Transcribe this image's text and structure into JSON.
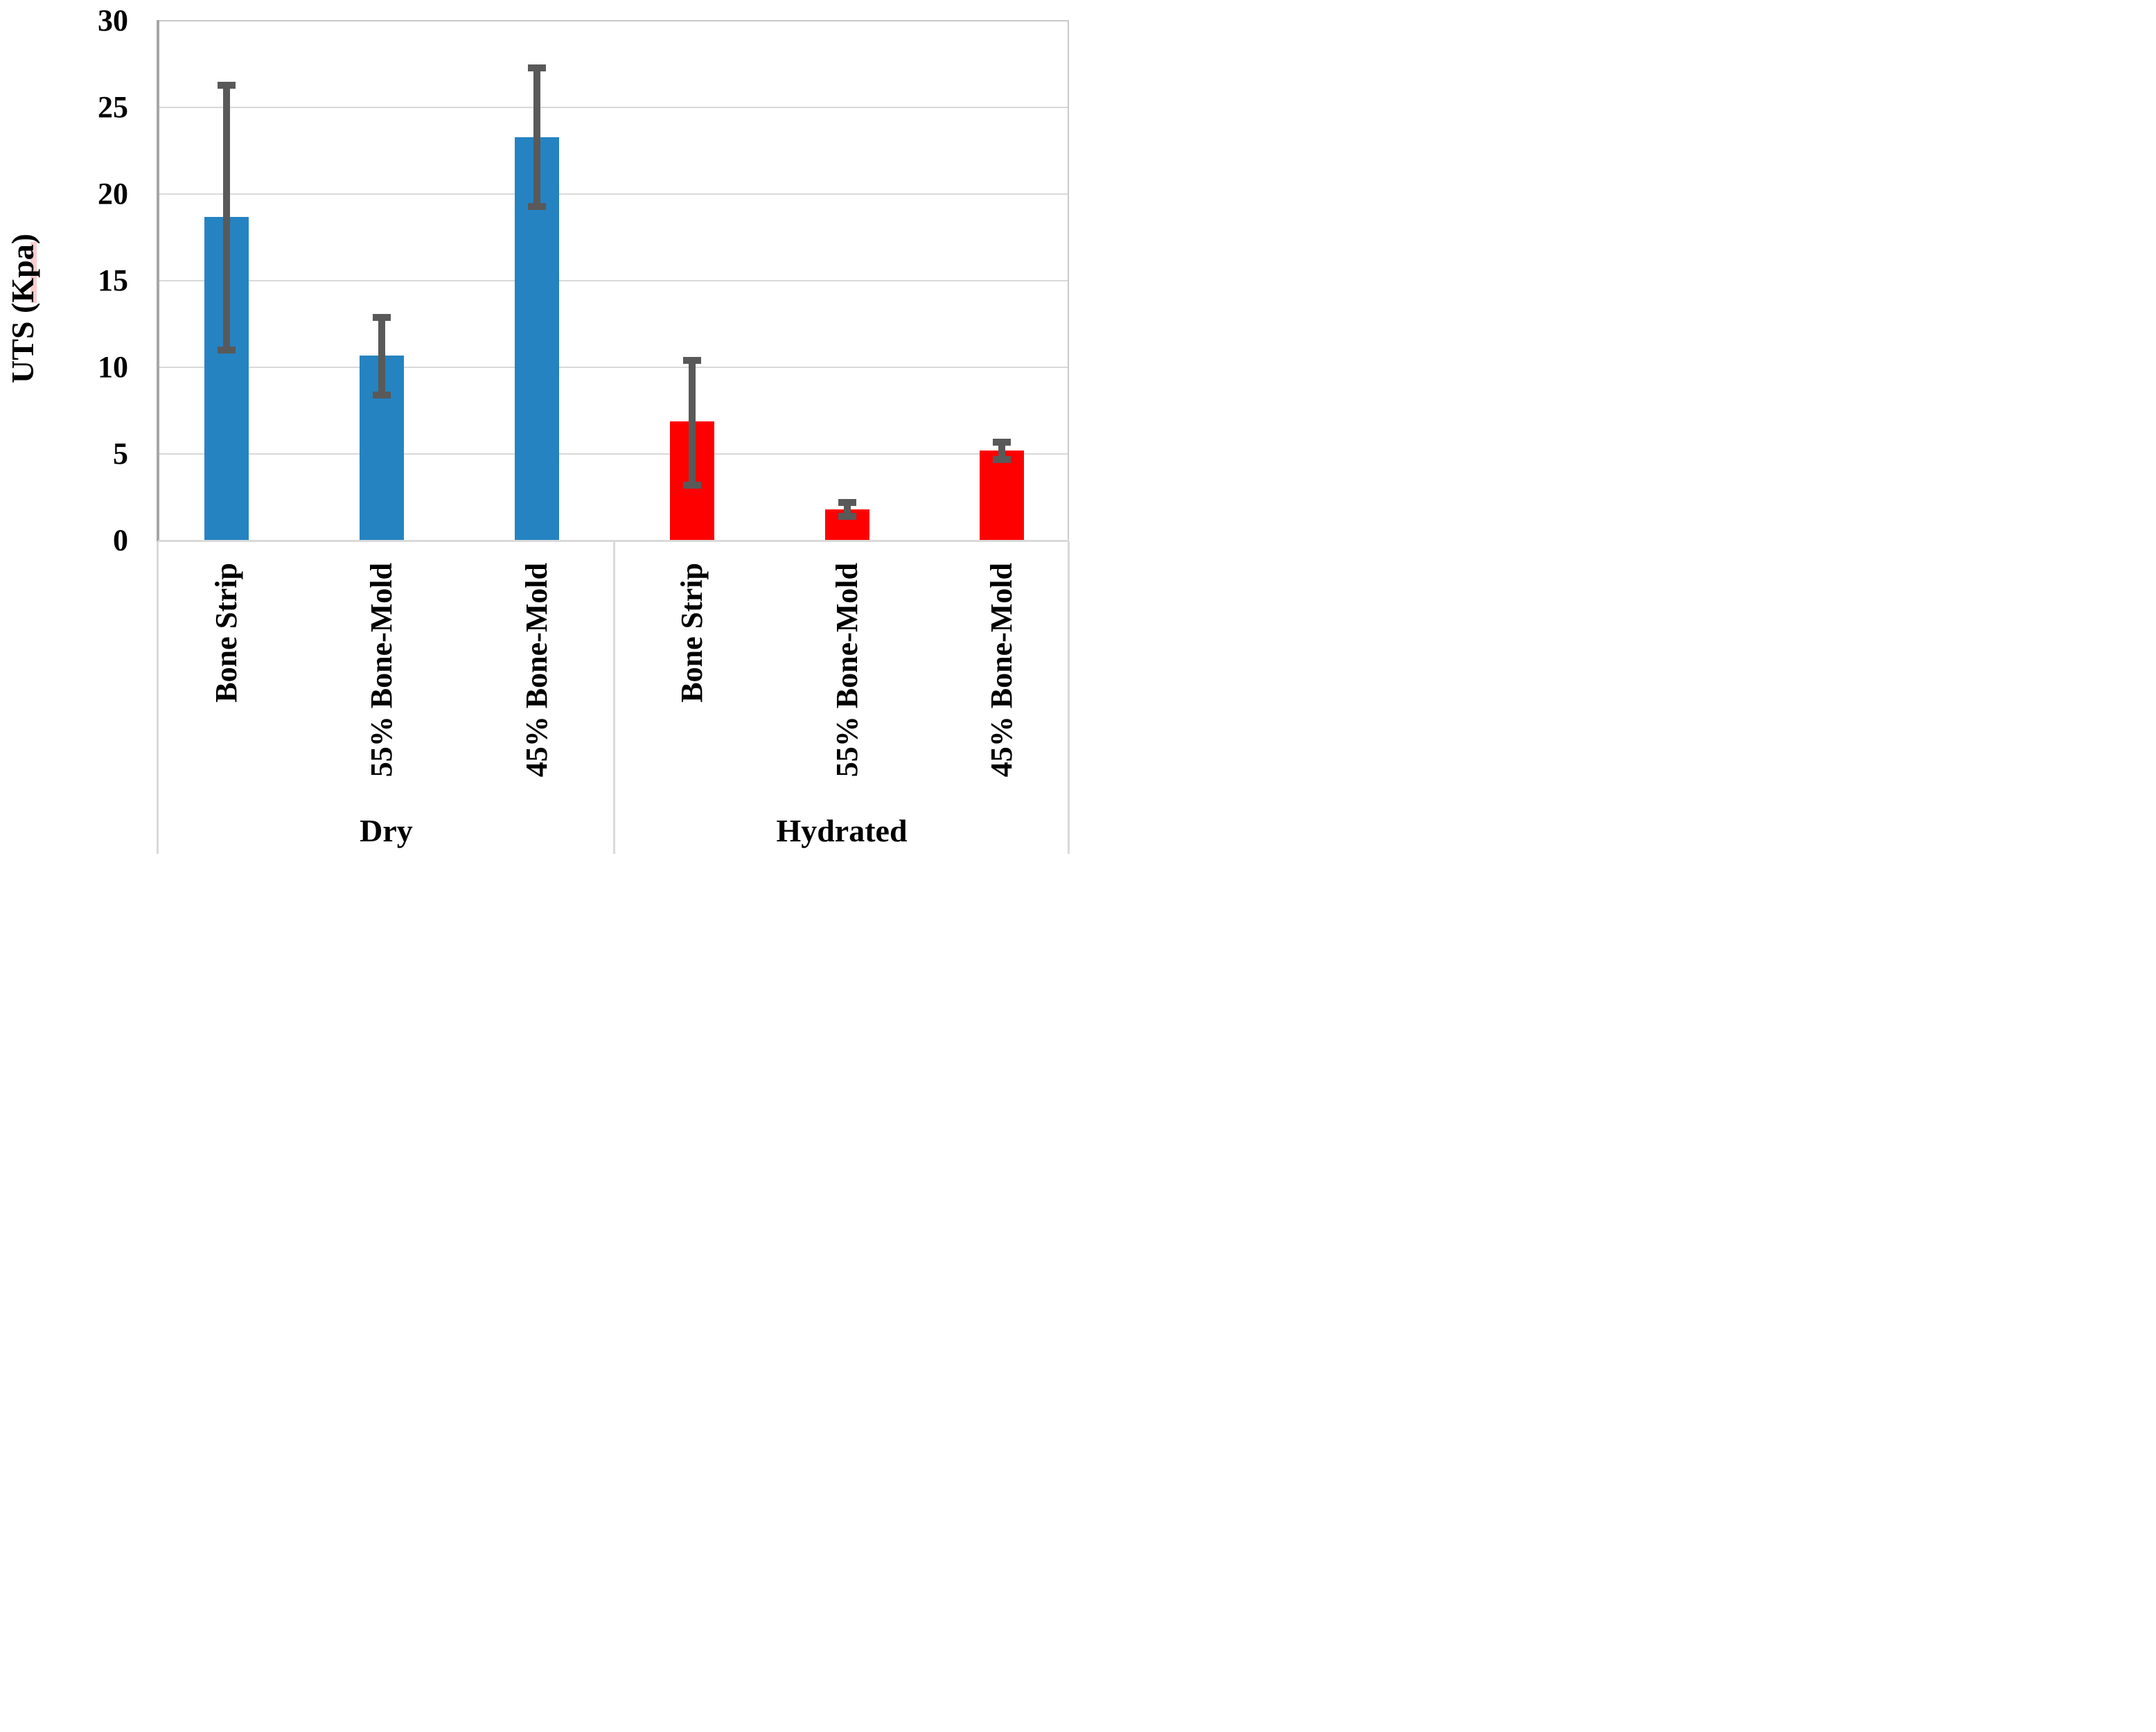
{
  "chart_data": {
    "type": "bar",
    "title": "",
    "ylabel": "UTS (Kpa)",
    "xlabel": "",
    "ylim": [
      0,
      30
    ],
    "yticks": [
      0,
      5,
      10,
      15,
      20,
      25,
      30
    ],
    "grid": true,
    "legend": "none",
    "error_bars": true,
    "colors": {
      "dry_bar": "#2583c2",
      "hydrated_bar": "#ff0000",
      "error_bar": "#595959",
      "gridline": "#d9d9d9",
      "axis_line": "#a6a6a6",
      "text": "#000000"
    },
    "groups": [
      {
        "label": "Dry",
        "color": "#2583c2",
        "bars": [
          {
            "category": "Bone Strip",
            "value": 18.7,
            "err_low": 11.0,
            "err_high": 26.3
          },
          {
            "category": "55% Bone-Mold",
            "value": 10.7,
            "err_low": 8.4,
            "err_high": 12.9
          },
          {
            "category": "45% Bone-Mold",
            "value": 23.3,
            "err_low": 19.3,
            "err_high": 27.3
          }
        ]
      },
      {
        "label": "Hydrated",
        "color": "#ff0000",
        "bars": [
          {
            "category": "Bone Strip",
            "value": 6.9,
            "err_low": 3.2,
            "err_high": 10.4
          },
          {
            "category": "55% Bone-Mold",
            "value": 1.8,
            "err_low": 1.4,
            "err_high": 2.2
          },
          {
            "category": "45% Bone-Mold",
            "value": 5.2,
            "err_low": 4.7,
            "err_high": 5.7
          }
        ]
      }
    ]
  }
}
